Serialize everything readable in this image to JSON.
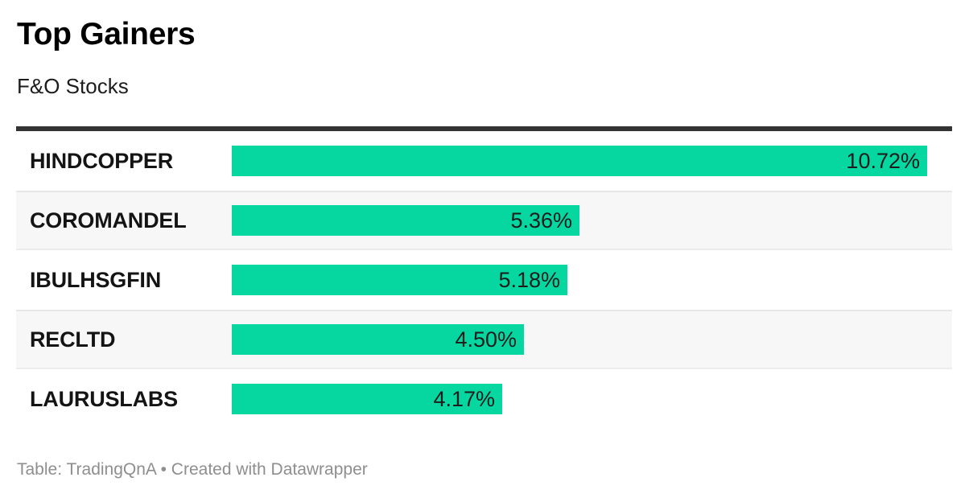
{
  "header": {
    "title": "Top Gainers",
    "subtitle": "F&O Stocks"
  },
  "footer": {
    "text": "Table: TradingQnA • Created with Datawrapper"
  },
  "colors": {
    "bar": "#06d6a0",
    "rule": "#333333",
    "row_alt_bg": "#f7f7f7",
    "footer_text": "#8e8e8e"
  },
  "chart_data": {
    "type": "bar",
    "orientation": "horizontal",
    "title": "Top Gainers",
    "subtitle": "F&O Stocks",
    "categories": [
      "HINDCOPPER",
      "COROMANDEL",
      "IBULHSGFIN",
      "RECLTD",
      "LAURUSLABS"
    ],
    "values": [
      10.72,
      5.36,
      5.18,
      4.5,
      4.17
    ],
    "xlim": [
      0,
      10.72
    ],
    "value_format": "percent",
    "grid": false,
    "legend": false,
    "rows": [
      {
        "label": "HINDCOPPER",
        "value": 10.72,
        "value_label": "10.72%"
      },
      {
        "label": "COROMANDEL",
        "value": 5.36,
        "value_label": "5.36%"
      },
      {
        "label": "IBULHSGFIN",
        "value": 5.18,
        "value_label": "5.18%"
      },
      {
        "label": "RECLTD",
        "value": 4.5,
        "value_label": "4.50%"
      },
      {
        "label": "LAURUSLABS",
        "value": 4.17,
        "value_label": "4.17%"
      }
    ],
    "source_note": "Table: TradingQnA",
    "attribution": "Created with Datawrapper"
  }
}
